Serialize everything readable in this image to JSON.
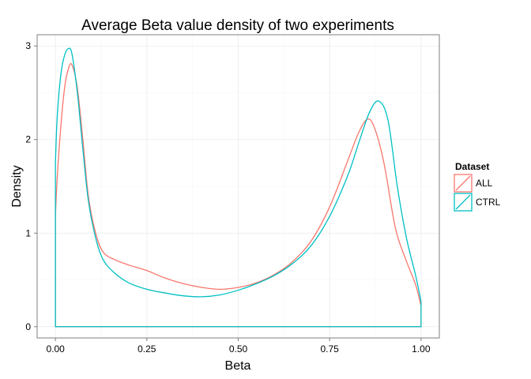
{
  "chart_data": {
    "type": "line",
    "subtype": "density",
    "title": "Average Beta value density of two experiments",
    "xlabel": "Beta",
    "ylabel": "Density",
    "xlim": [
      -0.05,
      1.05
    ],
    "ylim": [
      -0.12,
      3.12
    ],
    "x_ticks": [
      0,
      0.25,
      0.5,
      0.75,
      1.0
    ],
    "x_tick_labels": [
      "0.00",
      "0.25",
      "0.50",
      "0.75",
      "1.00"
    ],
    "y_ticks": [
      0,
      1,
      2,
      3
    ],
    "y_tick_labels": [
      "0",
      "1",
      "2",
      "3"
    ],
    "grid": true,
    "legend": {
      "title": "Dataset",
      "position": "right"
    },
    "series": [
      {
        "name": "ALL",
        "color": "#F8766D",
        "x": [
          0.0,
          0.005,
          0.015,
          0.025,
          0.035,
          0.045,
          0.06,
          0.075,
          0.09,
          0.11,
          0.13,
          0.16,
          0.2,
          0.25,
          0.3,
          0.35,
          0.4,
          0.45,
          0.5,
          0.55,
          0.6,
          0.65,
          0.7,
          0.75,
          0.8,
          0.83,
          0.855,
          0.875,
          0.9,
          0.93,
          0.96,
          0.985,
          1.0
        ],
        "y": [
          1.18,
          1.6,
          2.15,
          2.55,
          2.75,
          2.8,
          2.55,
          2.0,
          1.4,
          1.0,
          0.8,
          0.72,
          0.66,
          0.6,
          0.52,
          0.46,
          0.42,
          0.4,
          0.42,
          0.47,
          0.56,
          0.7,
          0.92,
          1.28,
          1.78,
          2.08,
          2.22,
          2.1,
          1.72,
          1.05,
          0.7,
          0.45,
          0.22
        ]
      },
      {
        "name": "CTRL",
        "color": "#00BFC4",
        "x": [
          0.0,
          0.005,
          0.015,
          0.025,
          0.035,
          0.045,
          0.06,
          0.075,
          0.09,
          0.11,
          0.13,
          0.16,
          0.2,
          0.25,
          0.3,
          0.35,
          0.4,
          0.45,
          0.5,
          0.55,
          0.6,
          0.65,
          0.7,
          0.75,
          0.8,
          0.83,
          0.86,
          0.885,
          0.91,
          0.935,
          0.96,
          0.985,
          1.0
        ],
        "y": [
          1.75,
          2.25,
          2.7,
          2.9,
          2.97,
          2.92,
          2.5,
          1.9,
          1.35,
          0.95,
          0.72,
          0.58,
          0.47,
          0.4,
          0.36,
          0.33,
          0.32,
          0.34,
          0.39,
          0.46,
          0.55,
          0.68,
          0.87,
          1.18,
          1.62,
          1.97,
          2.3,
          2.41,
          2.2,
          1.5,
          0.95,
          0.55,
          0.27
        ]
      }
    ]
  }
}
